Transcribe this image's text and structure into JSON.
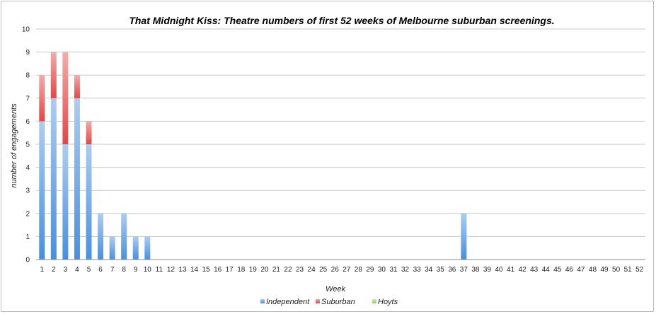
{
  "chart_data": {
    "type": "bar",
    "stacked": true,
    "title": "That Midnight Kiss: Theatre numbers of first 52 weeks of Melbourne suburban screenings.",
    "xlabel": "Week",
    "ylabel": "number of engagements",
    "ylim": [
      0,
      10
    ],
    "yticks": [
      0,
      1,
      2,
      3,
      4,
      5,
      6,
      7,
      8,
      9,
      10
    ],
    "grid": true,
    "legend_position": "bottom",
    "categories": [
      "1",
      "2",
      "3",
      "4",
      "5",
      "6",
      "7",
      "8",
      "9",
      "10",
      "11",
      "12",
      "13",
      "14",
      "15",
      "16",
      "17",
      "18",
      "19",
      "20",
      "21",
      "22",
      "23",
      "24",
      "25",
      "26",
      "27",
      "28",
      "29",
      "30",
      "31",
      "32",
      "33",
      "34",
      "35",
      "36",
      "37",
      "38",
      "39",
      "40",
      "41",
      "42",
      "43",
      "44",
      "45",
      "46",
      "47",
      "48",
      "49",
      "50",
      "51",
      "52"
    ],
    "series": [
      {
        "name": "Independent",
        "color": "#4a8fdc",
        "values": [
          6,
          7,
          5,
          7,
          5,
          2,
          1,
          2,
          1,
          1,
          0,
          0,
          0,
          0,
          0,
          0,
          0,
          0,
          0,
          0,
          0,
          0,
          0,
          0,
          0,
          0,
          0,
          0,
          0,
          0,
          0,
          0,
          0,
          0,
          0,
          0,
          2,
          0,
          0,
          0,
          0,
          0,
          0,
          0,
          0,
          0,
          0,
          0,
          0,
          0,
          0,
          0
        ]
      },
      {
        "name": "Suburban",
        "color": "#e04848",
        "values": [
          2,
          2,
          4,
          1,
          1,
          0,
          0,
          0,
          0,
          0,
          0,
          0,
          0,
          0,
          0,
          0,
          0,
          0,
          0,
          0,
          0,
          0,
          0,
          0,
          0,
          0,
          0,
          0,
          0,
          0,
          0,
          0,
          0,
          0,
          0,
          0,
          0,
          0,
          0,
          0,
          0,
          0,
          0,
          0,
          0,
          0,
          0,
          0,
          0,
          0,
          0,
          0
        ]
      },
      {
        "name": "Hoyts",
        "color": "#8fd45a",
        "values": [
          0,
          0,
          0,
          0,
          0,
          0,
          0,
          0,
          0,
          0,
          0,
          0,
          0,
          0,
          0,
          0,
          0,
          0,
          0,
          0,
          0,
          0,
          0,
          0,
          0,
          0,
          0,
          0,
          0,
          0,
          0,
          0,
          0,
          0,
          0,
          0,
          0,
          0,
          0,
          0,
          0,
          0,
          0,
          0,
          0,
          0,
          0,
          0,
          0,
          0,
          0,
          0
        ]
      }
    ]
  }
}
